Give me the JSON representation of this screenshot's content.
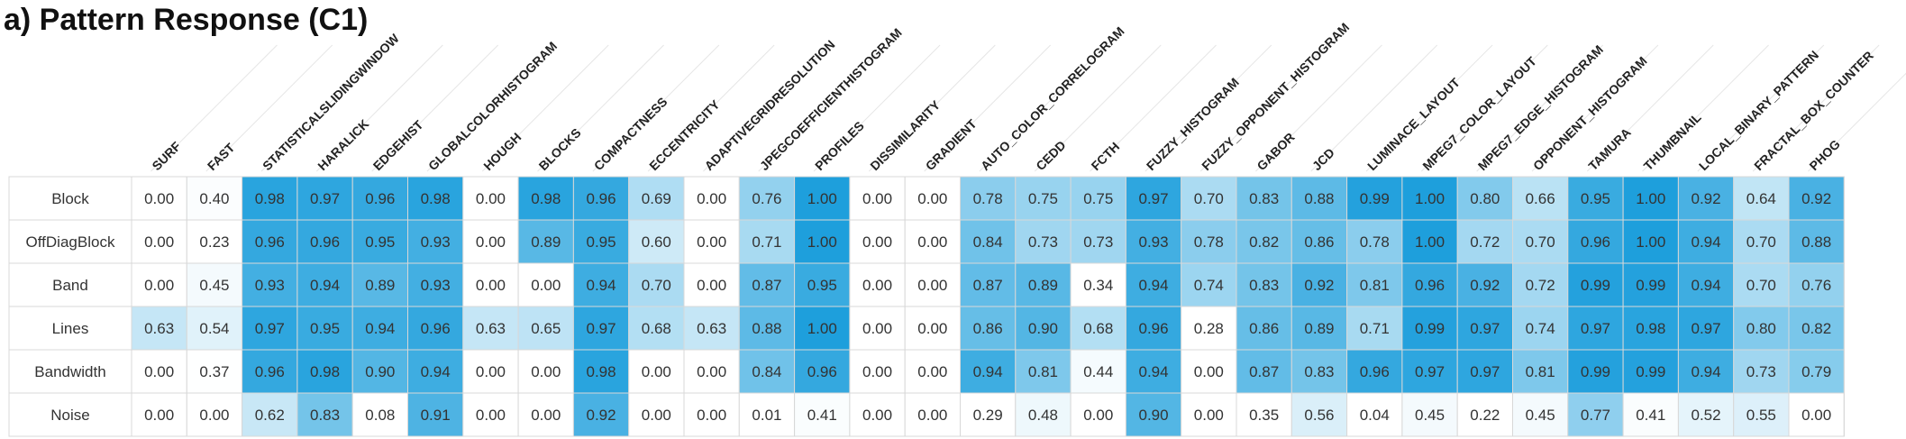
{
  "chart_data": {
    "type": "heatmap",
    "title": "a) Pattern Response (C1)",
    "columns": [
      "SURF",
      "FAST",
      "STATISTICALSLIDINGWINDOW",
      "HARALICK",
      "EDGEHIST",
      "GLOBALCOLORHISTOGRAM",
      "HOUGH",
      "BLOCKS",
      "COMPACTNESS",
      "ECCENTRICITY",
      "ADAPTIVEGRIDRESOLUTION",
      "JPEGCOEFFICIENTHISTOGRAM",
      "PROFILES",
      "DISSIMILARITY",
      "GRADIENT",
      "AUTO_COLOR_CORRELOGRAM",
      "CEDD",
      "FCTH",
      "FUZZY_HISTOGRAM",
      "FUZZY_OPPONENT_HISTOGRAM",
      "GABOR",
      "JCD",
      "LUMINACE_LAYOUT",
      "MPEG7_COLOR_LAYOUT",
      "MPEG7_EDGE_HISTOGRAM",
      "OPPONENT_HISTOGRAM",
      "TAMURA",
      "THUMBNAIL",
      "LOCAL_BINARY_PATTERN",
      "FRACTAL_BOX_COUNTER",
      "PHOG"
    ],
    "rows": [
      "Block",
      "OffDiagBlock",
      "Band",
      "Lines",
      "Bandwidth",
      "Noise"
    ],
    "values": [
      [
        "0.00",
        "0.40",
        "0.98",
        "0.97",
        "0.96",
        "0.98",
        "0.00",
        "0.98",
        "0.96",
        "0.69",
        "0.00",
        "0.76",
        "1.00",
        "0.00",
        "0.00",
        "0.78",
        "0.75",
        "0.75",
        "0.97",
        "0.70",
        "0.83",
        "0.88",
        "0.99",
        "1.00",
        "0.80",
        "0.66",
        "0.95",
        "1.00",
        "0.92",
        "0.64",
        "0.92"
      ],
      [
        "0.00",
        "0.23",
        "0.96",
        "0.96",
        "0.95",
        "0.93",
        "0.00",
        "0.89",
        "0.95",
        "0.60",
        "0.00",
        "0.71",
        "1.00",
        "0.00",
        "0.00",
        "0.84",
        "0.73",
        "0.73",
        "0.93",
        "0.78",
        "0.82",
        "0.86",
        "0.78",
        "1.00",
        "0.72",
        "0.70",
        "0.96",
        "1.00",
        "0.94",
        "0.70",
        "0.88"
      ],
      [
        "0.00",
        "0.45",
        "0.93",
        "0.94",
        "0.89",
        "0.93",
        "0.00",
        "0.00",
        "0.94",
        "0.70",
        "0.00",
        "0.87",
        "0.95",
        "0.00",
        "0.00",
        "0.87",
        "0.89",
        "0.34",
        "0.94",
        "0.74",
        "0.83",
        "0.92",
        "0.81",
        "0.96",
        "0.92",
        "0.72",
        "0.99",
        "0.99",
        "0.94",
        "0.70",
        "0.76"
      ],
      [
        "0.63",
        "0.54",
        "0.97",
        "0.95",
        "0.94",
        "0.96",
        "0.63",
        "0.65",
        "0.97",
        "0.68",
        "0.63",
        "0.88",
        "1.00",
        "0.00",
        "0.00",
        "0.86",
        "0.90",
        "0.68",
        "0.96",
        "0.28",
        "0.86",
        "0.89",
        "0.71",
        "0.99",
        "0.97",
        "0.74",
        "0.97",
        "0.98",
        "0.97",
        "0.80",
        "0.82"
      ],
      [
        "0.00",
        "0.37",
        "0.96",
        "0.98",
        "0.90",
        "0.94",
        "0.00",
        "0.00",
        "0.98",
        "0.00",
        "0.00",
        "0.84",
        "0.96",
        "0.00",
        "0.00",
        "0.94",
        "0.81",
        "0.44",
        "0.94",
        "0.00",
        "0.87",
        "0.83",
        "0.96",
        "0.97",
        "0.97",
        "0.81",
        "0.99",
        "0.99",
        "0.94",
        "0.73",
        "0.79"
      ],
      [
        "0.00",
        "0.00",
        "0.62",
        "0.83",
        "0.08",
        "0.91",
        "0.00",
        "0.00",
        "0.92",
        "0.00",
        "0.00",
        "0.01",
        "0.41",
        "0.00",
        "0.00",
        "0.29",
        "0.48",
        "0.00",
        "0.90",
        "0.00",
        "0.35",
        "0.56",
        "0.04",
        "0.45",
        "0.22",
        "0.45",
        "0.77",
        "0.41",
        "0.52",
        "0.55",
        "0.00"
      ]
    ],
    "colors": {
      "low": "#ffffff",
      "high": "#1e9fdc",
      "text": "#333333",
      "header_text": "#222222",
      "grid": "#d8d8d8",
      "guide": "#e6e6e6"
    }
  }
}
